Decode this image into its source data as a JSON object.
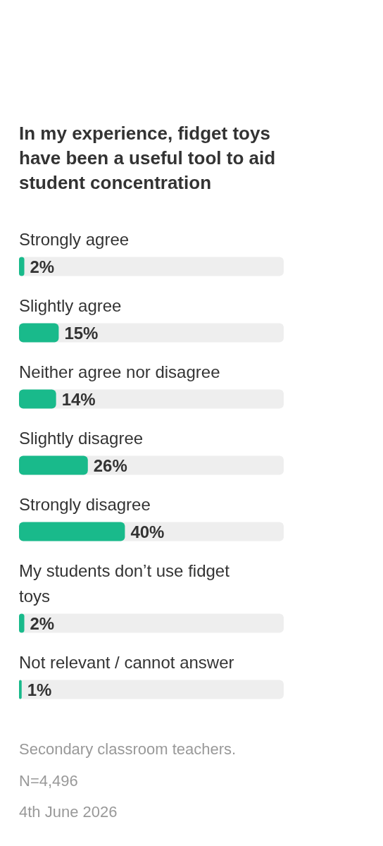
{
  "chart_data": {
    "type": "bar",
    "orientation": "horizontal",
    "title": "In my experience, fidget toys have been a useful tool to aid student concentration",
    "categories": [
      "Strongly agree",
      "Slightly agree",
      "Neither agree nor disagree",
      "Slightly disagree",
      "Strongly disagree",
      "My students don’t use fidget toys",
      "Not relevant / cannot answer"
    ],
    "values": [
      2,
      15,
      14,
      26,
      40,
      2,
      1
    ],
    "value_labels": [
      "2%",
      "15%",
      "14%",
      "26%",
      "40%",
      "2%",
      "1%"
    ],
    "color": "#19ba8b",
    "tick_labels": false,
    "annotations": [
      "Secondary classroom teachers.",
      "N=4,496",
      "4th June 2026"
    ]
  }
}
